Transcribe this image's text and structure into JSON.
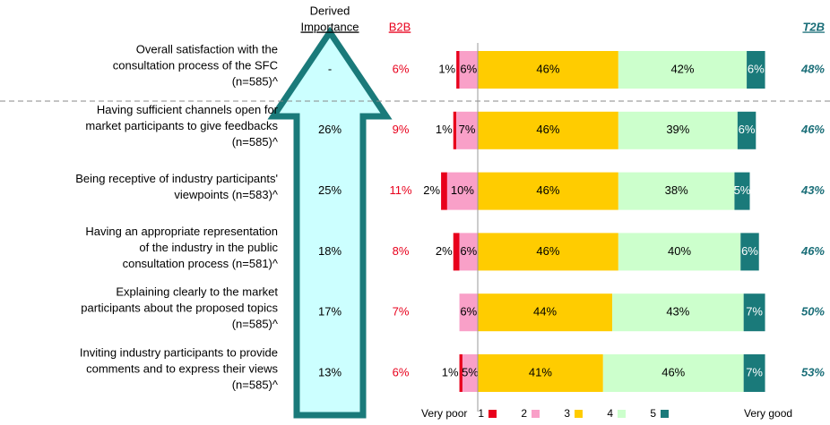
{
  "chart_data": {
    "type": "diverging-stacked-bar",
    "importance_header": [
      "Derived",
      "Importance"
    ],
    "b2b_header": "B2B",
    "t2b_header": "T2B",
    "categories": [
      [
        "Overall satisfaction with the",
        "consultation process of the SFC",
        "(n=585)^"
      ],
      [
        "Having sufficient channels open for",
        "market participants to give feedbacks",
        "(n=585)^"
      ],
      [
        "Being receptive of industry participants'",
        "viewpoints (n=583)^"
      ],
      [
        "Having an appropriate representation",
        "of the industry in the public",
        "consultation process (n=581)^"
      ],
      [
        "Explaining clearly to the market",
        "participants about the proposed topics",
        "(n=585)^"
      ],
      [
        "Inviting industry participants to provide",
        "comments and to express their views",
        "(n=585)^"
      ]
    ],
    "importance": [
      "-",
      "26%",
      "25%",
      "18%",
      "17%",
      "13%"
    ],
    "b2b": [
      "6%",
      "9%",
      "11%",
      "8%",
      "7%",
      "6%"
    ],
    "t2b": [
      "48%",
      "46%",
      "43%",
      "46%",
      "50%",
      "53%"
    ],
    "series": [
      {
        "name": "1",
        "color": "#e8001c",
        "values": [
          1,
          1,
          2,
          2,
          null,
          1
        ],
        "value_labels": [
          "1%",
          "1%",
          "2%",
          "2%",
          null,
          "1%"
        ]
      },
      {
        "name": "2",
        "color": "#f9a0c8",
        "values": [
          6,
          7,
          10,
          6,
          6,
          5
        ],
        "value_labels": [
          "6%",
          "7%",
          "10%",
          "6%",
          "6%",
          "5%"
        ]
      },
      {
        "name": "3",
        "color": "#ffcc00",
        "values": [
          46,
          46,
          46,
          46,
          44,
          41
        ],
        "value_labels": [
          "46%",
          "46%",
          "46%",
          "46%",
          "44%",
          "41%"
        ]
      },
      {
        "name": "4",
        "color": "#ccffcc",
        "values": [
          42,
          39,
          38,
          40,
          43,
          46
        ],
        "value_labels": [
          "42%",
          "39%",
          "38%",
          "40%",
          "43%",
          "46%"
        ]
      },
      {
        "name": "5",
        "color": "#1a7a7a",
        "values": [
          6,
          6,
          5,
          6,
          7,
          7
        ],
        "value_labels": [
          "6%",
          "6%",
          "5%",
          "6%",
          "7%",
          "7%"
        ]
      }
    ],
    "legend_left": "Very poor",
    "legend_right": "Very good"
  }
}
